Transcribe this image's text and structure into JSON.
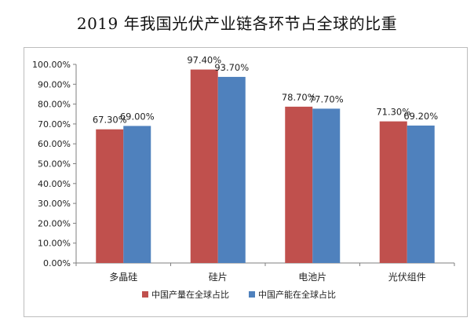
{
  "chart_data": {
    "type": "bar",
    "title": "2019 年我国光伏产业链各环节占全球的比重",
    "categories": [
      "多晶硅",
      "硅片",
      "电池片",
      "光伏组件"
    ],
    "series": [
      {
        "name": "中国产量在全球占比",
        "values": [
          67.3,
          97.4,
          78.7,
          71.3
        ],
        "labels": [
          "67.30%",
          "97.40%",
          "78.70%",
          "71.30%"
        ],
        "color": "#c0504d"
      },
      {
        "name": "中国产能在全球占比",
        "values": [
          69.0,
          93.7,
          77.7,
          69.2
        ],
        "labels": [
          "69.00%",
          "93.70%",
          "77.70%",
          "69.20%"
        ],
        "color": "#4f81bd"
      }
    ],
    "y_ticks": [
      "0.00%",
      "10.00%",
      "20.00%",
      "30.00%",
      "40.00%",
      "50.00%",
      "60.00%",
      "70.00%",
      "80.00%",
      "90.00%",
      "100.00%"
    ],
    "ylim": [
      0,
      100
    ],
    "grid": false,
    "legend_position": "bottom"
  }
}
